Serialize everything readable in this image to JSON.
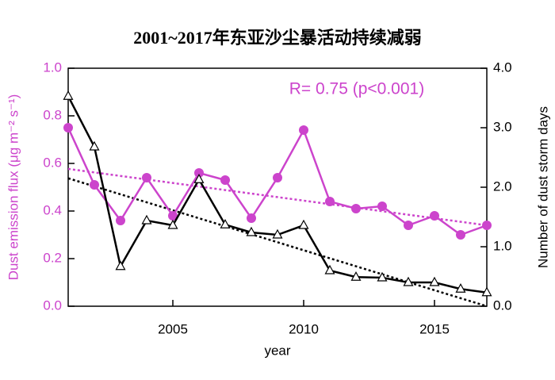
{
  "chart_data": {
    "type": "line",
    "title": "2001~2017年东亚沙尘暴活动持续减弱",
    "annotation": "R= 0.75 (p<0.001)",
    "x_label": "year",
    "y_label": "Dust emission flux (μg m⁻² s⁻¹)",
    "y2_label": "Number of dust storm days",
    "x": [
      2001,
      2002,
      2003,
      2004,
      2005,
      2006,
      2007,
      2008,
      2009,
      2010,
      2011,
      2012,
      2013,
      2014,
      2015,
      2016,
      2017
    ],
    "xlim": [
      2001,
      2017
    ],
    "xticks": [
      2005,
      2010,
      2015
    ],
    "ylim": [
      0,
      1
    ],
    "yticks": [
      {
        "value": 0,
        "label": "0.0"
      },
      0.2,
      0.4,
      0.6,
      0.8,
      {
        "value": 1,
        "label": "1.0"
      }
    ],
    "y2lim": [
      0,
      4
    ],
    "y2ticks": [
      {
        "value": 0,
        "label": "0.0"
      },
      {
        "value": 1,
        "label": "1.0"
      },
      {
        "value": 2,
        "label": "2.0"
      },
      {
        "value": 3,
        "label": "3.0"
      },
      {
        "value": 4,
        "label": "4.0"
      }
    ],
    "series": [
      {
        "color": "#cc44cc",
        "marker": "circle",
        "values": [
          0.75,
          0.51,
          0.36,
          0.54,
          0.38,
          0.56,
          0.53,
          0.37,
          0.54,
          0.74,
          0.44,
          0.41,
          0.42,
          0.34,
          0.38,
          0.3,
          0.34
        ]
      },
      {
        "color": "#000000",
        "marker": "triangle",
        "axis": "y2",
        "values": [
          3.53,
          2.68,
          0.67,
          1.44,
          1.36,
          2.13,
          1.37,
          1.24,
          1.2,
          1.36,
          0.6,
          0.49,
          0.48,
          0.4,
          0.4,
          0.29,
          0.23
        ]
      }
    ],
    "trend_lines": [
      {
        "color": "#cc44cc",
        "x": [
          2001,
          2017
        ],
        "values": [
          0.577,
          0.34
        ]
      },
      {
        "color": "#000000",
        "axis": "y2",
        "x": [
          2001,
          2017
        ],
        "values": [
          2.15,
          0
        ]
      }
    ]
  }
}
